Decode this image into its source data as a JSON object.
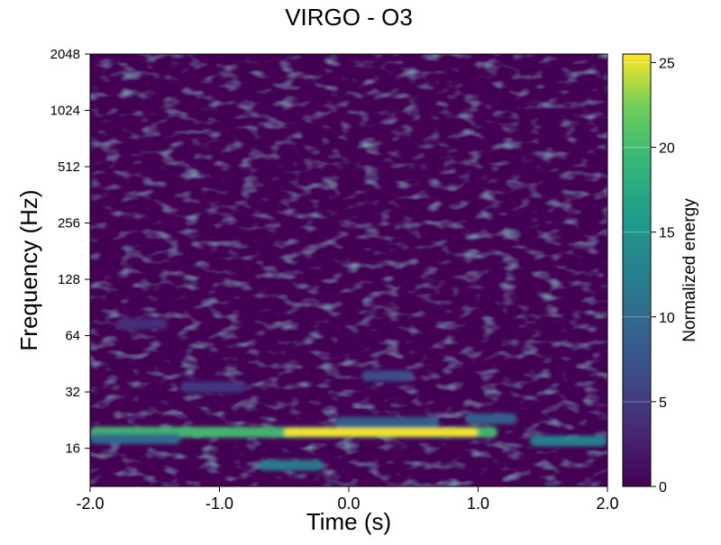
{
  "chart_data": {
    "type": "heatmap",
    "title": "VIRGO - O3",
    "xlabel": "Time (s)",
    "ylabel": "Frequency (Hz)",
    "xlim": [
      -2.0,
      2.0
    ],
    "ylim": [
      10,
      2048
    ],
    "yscale": "log2",
    "x_ticks": [
      -2.0,
      -1.0,
      0.0,
      1.0,
      2.0
    ],
    "x_tick_labels": [
      "-2.0",
      "-1.0",
      "0.0",
      "1.0",
      "2.0"
    ],
    "y_ticks": [
      16,
      32,
      64,
      128,
      256,
      512,
      1024,
      2048
    ],
    "y_tick_labels": [
      "16",
      "32",
      "64",
      "128",
      "256",
      "512",
      "1024",
      "2048"
    ],
    "colorbar": {
      "label": "Normalized energy",
      "range": [
        0,
        25.5
      ],
      "ticks": [
        0,
        5,
        10,
        15,
        20,
        25
      ],
      "tick_labels": [
        "0",
        "5",
        "10",
        "15",
        "20",
        "25"
      ],
      "colormap": "viridis"
    },
    "features": [
      {
        "t_start": -2.0,
        "t_end": 1.15,
        "f": 19.5,
        "energy": 20
      },
      {
        "t_start": -0.5,
        "t_end": 1.0,
        "f": 19.5,
        "energy": 25.5
      },
      {
        "t_start": 1.4,
        "t_end": 2.0,
        "f": 17.5,
        "energy": 13
      },
      {
        "t_start": -2.0,
        "t_end": -1.3,
        "f": 18.0,
        "energy": 10
      },
      {
        "t_start": -0.7,
        "t_end": -0.2,
        "f": 13.0,
        "energy": 12
      },
      {
        "t_start": -0.1,
        "t_end": 0.7,
        "f": 22.0,
        "energy": 9
      },
      {
        "t_start": 0.9,
        "t_end": 1.3,
        "f": 23.0,
        "energy": 9
      },
      {
        "t_start": 0.1,
        "t_end": 0.5,
        "f": 39.0,
        "energy": 7
      },
      {
        "t_start": -1.3,
        "t_end": -0.8,
        "f": 34.0,
        "energy": 5
      },
      {
        "t_start": -1.8,
        "t_end": -1.4,
        "f": 74.0,
        "energy": 4
      }
    ],
    "colors": {
      "background": "#440154",
      "viridis_low": "#440154",
      "viridis_high": "#fde725"
    }
  }
}
